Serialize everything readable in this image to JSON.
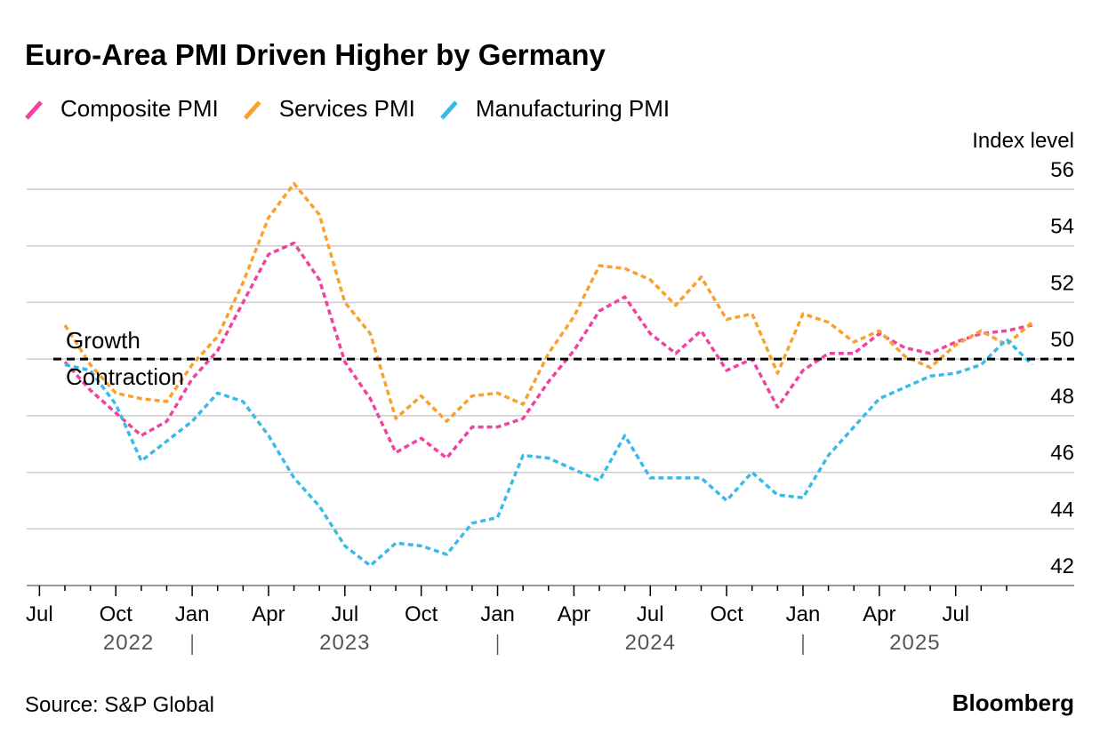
{
  "chart_data": {
    "type": "line",
    "title": "Euro-Area PMI Driven Higher by Germany",
    "y_axis_label": "Index level",
    "source": "Source: S&P Global",
    "brand": "Bloomberg",
    "categories": [
      "Jul",
      null,
      null,
      "Oct",
      null,
      null,
      "Jan",
      null,
      null,
      "Apr",
      null,
      null,
      "Jul",
      null,
      null,
      "Oct",
      null,
      null,
      "Jan",
      null,
      null,
      "Apr",
      null,
      null,
      "Jul",
      null,
      null,
      "Oct",
      null,
      null,
      "Jan",
      null,
      null,
      "Apr",
      null,
      null,
      "Jul",
      null,
      null
    ],
    "years": [
      "2022",
      "2023",
      "2024",
      "2025"
    ],
    "series": [
      {
        "name": "Composite PMI",
        "color": "#f0429f",
        "values": [
          49.9,
          48.9,
          48.1,
          47.3,
          47.8,
          49.3,
          50.3,
          52.0,
          53.7,
          54.1,
          52.8,
          49.9,
          48.6,
          46.7,
          47.2,
          46.5,
          47.6,
          47.6,
          47.9,
          49.2,
          50.3,
          51.7,
          52.2,
          50.9,
          50.2,
          51.0,
          49.6,
          50.0,
          48.3,
          49.6,
          50.2,
          50.2,
          50.9,
          50.4,
          50.2,
          50.6,
          50.9,
          51.0,
          51.2
        ]
      },
      {
        "name": "Services PMI",
        "color": "#f9a12e",
        "values": [
          51.2,
          49.8,
          48.8,
          48.6,
          48.5,
          49.8,
          50.8,
          52.7,
          55.0,
          56.2,
          55.1,
          52.0,
          50.9,
          47.9,
          48.7,
          47.8,
          48.7,
          48.8,
          48.4,
          50.2,
          51.5,
          53.3,
          53.2,
          52.8,
          51.9,
          52.9,
          51.4,
          51.6,
          49.5,
          51.6,
          51.3,
          50.6,
          51.0,
          50.1,
          49.7,
          50.5,
          51.0,
          50.5,
          51.3
        ]
      },
      {
        "name": "Manufacturing PMI",
        "color": "#39bbea",
        "values": [
          49.8,
          49.6,
          48.4,
          46.4,
          47.1,
          47.8,
          48.8,
          48.5,
          47.3,
          45.8,
          44.8,
          43.4,
          42.7,
          43.5,
          43.4,
          43.1,
          44.2,
          44.4,
          46.6,
          46.5,
          46.1,
          45.7,
          47.3,
          45.8,
          45.8,
          45.8,
          45.0,
          46.0,
          45.2,
          45.1,
          46.6,
          47.6,
          48.6,
          49.0,
          49.4,
          49.5,
          49.8,
          50.7,
          49.8
        ]
      }
    ],
    "reference_line": 50,
    "reference_labels": [
      "Growth",
      "Contraction"
    ],
    "ylim": [
      42,
      56
    ],
    "yticks": [
      42,
      44,
      46,
      48,
      50,
      52,
      54,
      56
    ],
    "grid": true
  }
}
